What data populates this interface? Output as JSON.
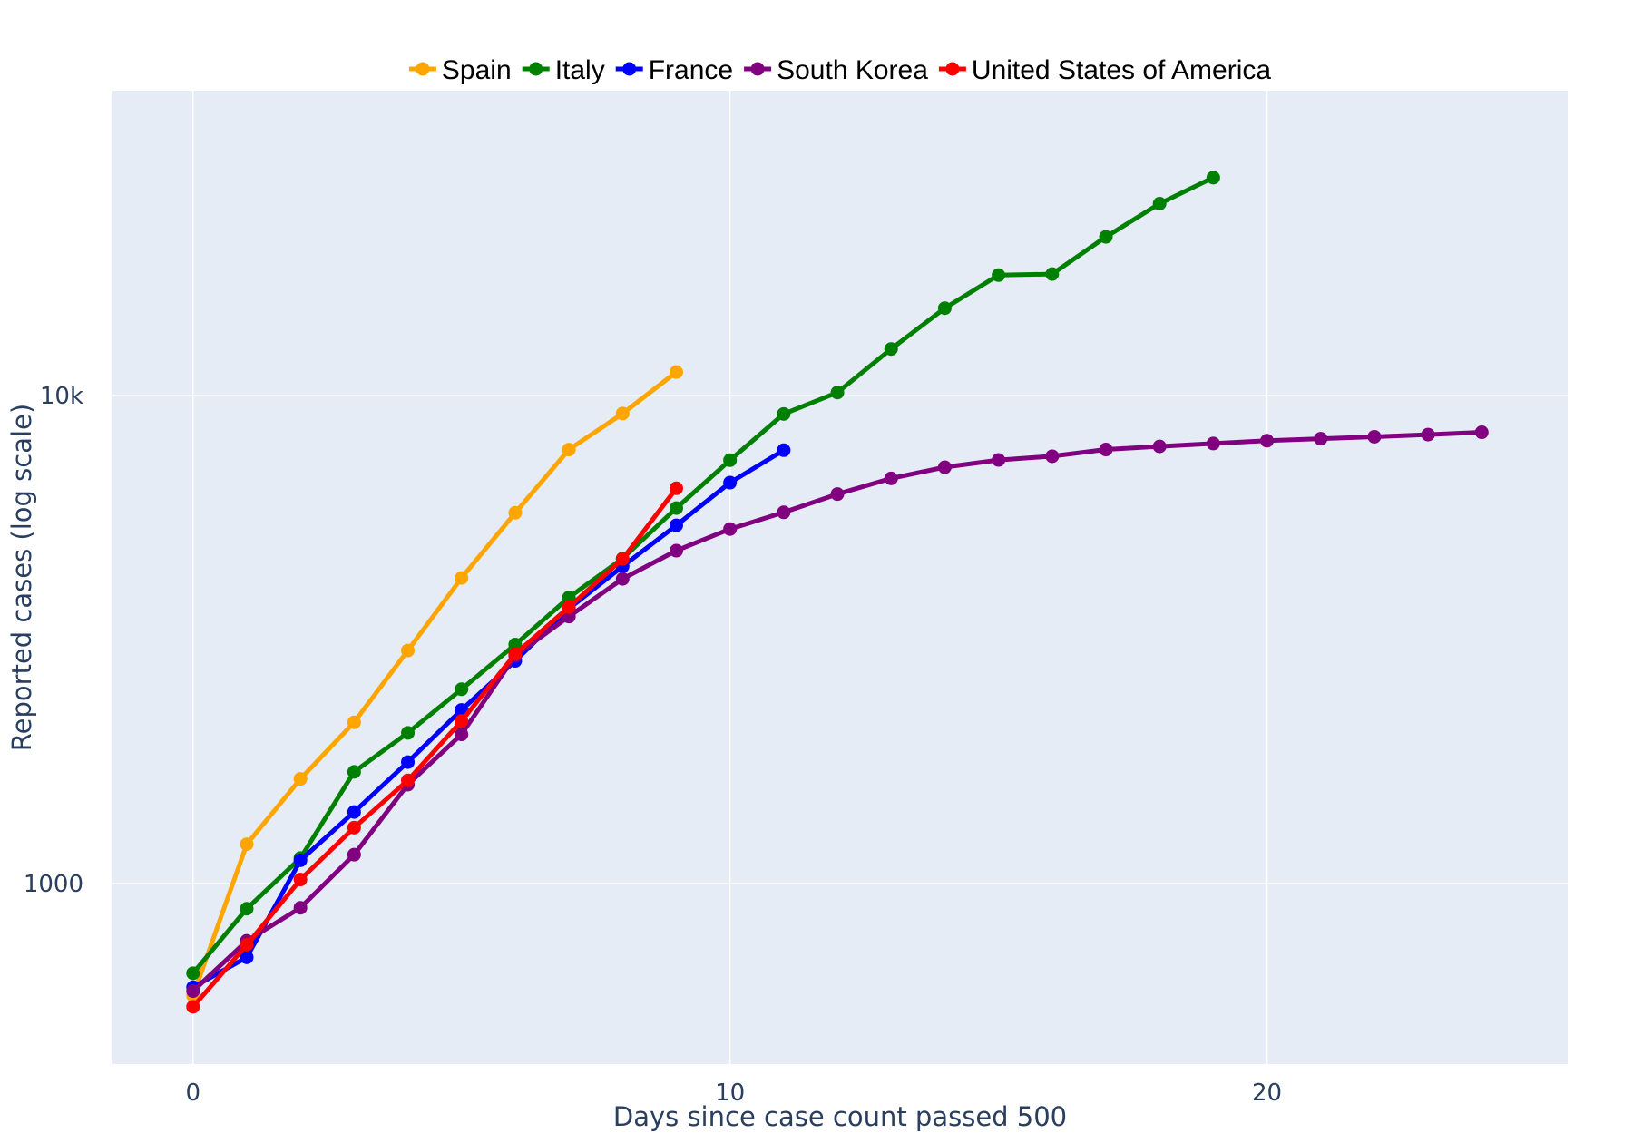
{
  "chart_data": {
    "type": "line",
    "title": "",
    "xlabel": "Days since case count passed 500",
    "ylabel": "Reported cases (log scale)",
    "y_scale": "log",
    "xlim": [
      -1.5,
      25.6
    ],
    "ylim_log10": [
      2.63,
      4.625
    ],
    "x_ticks": [
      0,
      10,
      20
    ],
    "x_tick_labels": [
      "0",
      "10",
      "20"
    ],
    "y_ticks": [
      1000,
      10000
    ],
    "y_tick_labels": [
      "1000",
      "10k"
    ],
    "grid": true,
    "legend_position": "top",
    "series": [
      {
        "name": "Spain",
        "color": "#FFA500",
        "x": [
          0,
          1,
          2,
          3,
          4,
          5,
          6,
          7,
          8,
          9
        ],
        "y": [
          589,
          1204,
          1639,
          2140,
          3004,
          4231,
          5753,
          7753,
          9191,
          11178
        ]
      },
      {
        "name": "Italy",
        "color": "#008000",
        "x": [
          0,
          1,
          2,
          3,
          4,
          5,
          6,
          7,
          8,
          9,
          10,
          11,
          12,
          13,
          14,
          15,
          16,
          17,
          18,
          19
        ],
        "y": [
          655,
          888,
          1128,
          1694,
          2036,
          2502,
          3089,
          3858,
          4636,
          5883,
          7375,
          9172,
          10149,
          12462,
          15113,
          17660,
          17750,
          21157,
          24747,
          27980
        ]
      },
      {
        "name": "France",
        "color": "#0000FF",
        "x": [
          0,
          1,
          2,
          3,
          4,
          5,
          6,
          7,
          8,
          9,
          10,
          11
        ],
        "y": [
          613,
          706,
          1116,
          1402,
          1774,
          2269,
          2860,
          3661,
          4469,
          5423,
          6633,
          7730
        ]
      },
      {
        "name": "South Korea",
        "color": "#800080",
        "x": [
          0,
          1,
          2,
          3,
          4,
          5,
          6,
          7,
          8,
          9,
          10,
          11,
          12,
          13,
          14,
          15,
          16,
          17,
          18,
          19,
          20,
          21,
          22,
          23,
          24
        ],
        "y": [
          602,
          763,
          892,
          1146,
          1595,
          2022,
          2931,
          3526,
          4212,
          4812,
          5328,
          5766,
          6284,
          6767,
          7134,
          7382,
          7513,
          7755,
          7869,
          7979,
          8086,
          8162,
          8236,
          8320,
          8413
        ]
      },
      {
        "name": "United States of America",
        "color": "#FF0000",
        "x": [
          0,
          1,
          2,
          3,
          4,
          5,
          6,
          7,
          8,
          9
        ],
        "y": [
          559,
          749,
          1019,
          1302,
          1627,
          2154,
          2954,
          3686,
          4628,
          6458
        ]
      }
    ]
  }
}
